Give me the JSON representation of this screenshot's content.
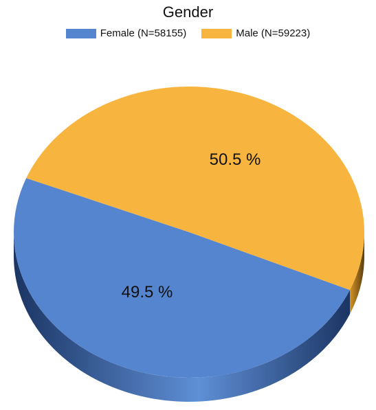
{
  "chart_data": {
    "type": "pie",
    "title": "Gender",
    "legend_position": "top",
    "slices": [
      {
        "name": "Female (N=58155)",
        "value": 58155,
        "percent_label": "49.5 %",
        "color": "#5585cf",
        "side_dark": "#1b3563",
        "side_light": "#5f8fd6"
      },
      {
        "name": "Male (N=59223)",
        "value": 59223,
        "percent_label": "50.5 %",
        "color": "#f7b540",
        "side_dark": "#5a3d10",
        "side_light": "#d39324"
      }
    ]
  }
}
